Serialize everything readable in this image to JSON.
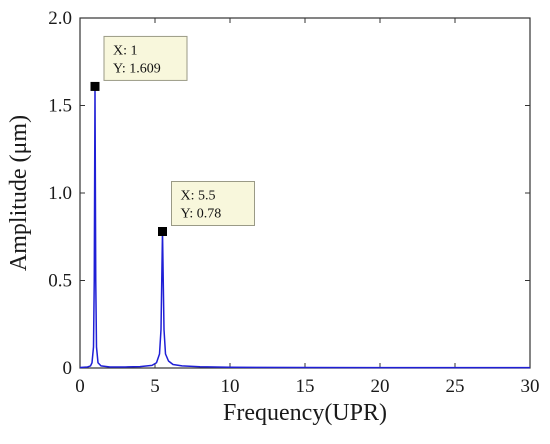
{
  "chart_data": {
    "type": "line",
    "title": "",
    "xlabel": "Frequency(UPR)",
    "ylabel": "Amplitude (μm)",
    "xlim": [
      0,
      30
    ],
    "ylim": [
      0,
      2.0
    ],
    "xticks": [
      0,
      5,
      10,
      15,
      20,
      25,
      30
    ],
    "xtick_labels": [
      "0",
      "5",
      "10",
      "15",
      "20",
      "25",
      "30"
    ],
    "yticks": [
      0,
      0.5,
      1.0,
      1.5,
      2.0
    ],
    "ytick_labels": [
      "0",
      "0.5",
      "1.0",
      "1.5",
      "2.0"
    ],
    "grid": false,
    "series": [
      {
        "color": "#1f1fd6",
        "x": [
          0,
          0.5,
          0.7,
          0.8,
          0.9,
          0.95,
          1.0,
          1.05,
          1.1,
          1.2,
          1.4,
          2,
          3,
          4,
          4.8,
          5.1,
          5.3,
          5.4,
          5.45,
          5.5,
          5.55,
          5.6,
          5.7,
          5.9,
          6.2,
          6.8,
          8,
          10,
          15,
          20,
          25,
          30
        ],
        "y": [
          0.003,
          0.006,
          0.012,
          0.03,
          0.12,
          0.5,
          1.609,
          0.5,
          0.12,
          0.03,
          0.012,
          0.006,
          0.006,
          0.008,
          0.015,
          0.03,
          0.08,
          0.22,
          0.5,
          0.78,
          0.5,
          0.22,
          0.08,
          0.04,
          0.02,
          0.012,
          0.007,
          0.004,
          0.003,
          0.002,
          0.002,
          0.002
        ]
      }
    ],
    "datatips": [
      {
        "x": 1,
        "y": 1.609,
        "line1": "X: 1",
        "line2": "Y: 1.609"
      },
      {
        "x": 5.5,
        "y": 0.78,
        "line1": "X: 5.5",
        "line2": "Y: 0.78"
      }
    ]
  }
}
